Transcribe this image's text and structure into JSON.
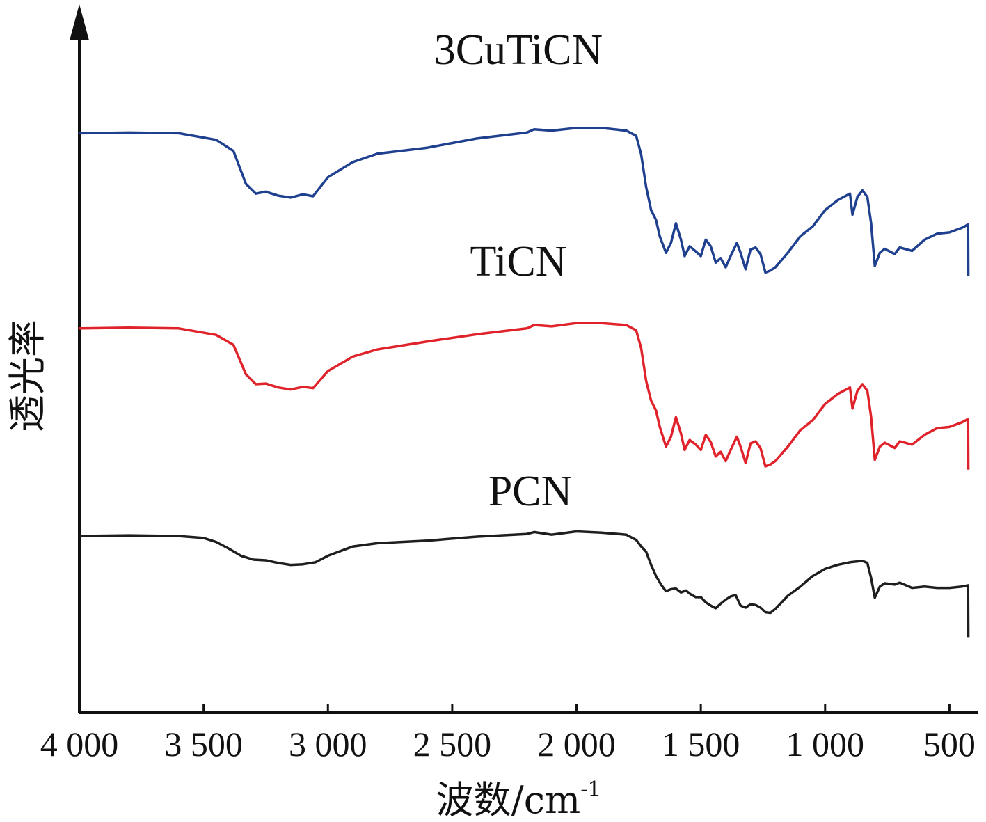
{
  "chart_data": {
    "type": "line",
    "xlabel": "波数/cm",
    "xlabel_superscript": "-1",
    "ylabel": "透光率",
    "xlim": [
      4000,
      420
    ],
    "x_reversed": true,
    "y_range": [
      0,
      100
    ],
    "grid": false,
    "x_ticks": [
      {
        "value": 4000,
        "label": "4 000"
      },
      {
        "value": 3500,
        "label": "3 500"
      },
      {
        "value": 3000,
        "label": "3 000"
      },
      {
        "value": 2500,
        "label": "2 500"
      },
      {
        "value": 2000,
        "label": "2 000"
      },
      {
        "value": 1500,
        "label": "1 500"
      },
      {
        "value": 1000,
        "label": "1 000"
      },
      {
        "value": 500,
        "label": "500"
      }
    ],
    "series": [
      {
        "name": "3CuTiCN",
        "color": "#1f3f8f",
        "points": [
          [
            4000,
            88.2
          ],
          [
            3800,
            88.3
          ],
          [
            3600,
            88.2
          ],
          [
            3450,
            87.2
          ],
          [
            3380,
            85.5
          ],
          [
            3330,
            80.5
          ],
          [
            3290,
            79.0
          ],
          [
            3250,
            79.3
          ],
          [
            3200,
            78.7
          ],
          [
            3150,
            78.4
          ],
          [
            3100,
            78.9
          ],
          [
            3060,
            78.6
          ],
          [
            3000,
            81.5
          ],
          [
            2900,
            83.8
          ],
          [
            2800,
            85.1
          ],
          [
            2600,
            86.0
          ],
          [
            2400,
            87.4
          ],
          [
            2200,
            88.3
          ],
          [
            2170,
            88.8
          ],
          [
            2100,
            88.6
          ],
          [
            2000,
            89.0
          ],
          [
            1900,
            89.0
          ],
          [
            1800,
            88.6
          ],
          [
            1760,
            87.8
          ],
          [
            1740,
            85.0
          ],
          [
            1720,
            80.0
          ],
          [
            1700,
            76.5
          ],
          [
            1680,
            75.0
          ],
          [
            1665,
            72.5
          ],
          [
            1640,
            70.0
          ],
          [
            1620,
            71.5
          ],
          [
            1600,
            74.5
          ],
          [
            1580,
            72.0
          ],
          [
            1565,
            69.5
          ],
          [
            1545,
            71.0
          ],
          [
            1520,
            70.2
          ],
          [
            1500,
            69.5
          ],
          [
            1480,
            72.0
          ],
          [
            1460,
            71.0
          ],
          [
            1440,
            68.5
          ],
          [
            1420,
            69.2
          ],
          [
            1400,
            67.8
          ],
          [
            1380,
            69.5
          ],
          [
            1355,
            71.5
          ],
          [
            1340,
            70.0
          ],
          [
            1320,
            67.5
          ],
          [
            1300,
            70.5
          ],
          [
            1280,
            70.8
          ],
          [
            1260,
            69.8
          ],
          [
            1240,
            67.0
          ],
          [
            1220,
            67.3
          ],
          [
            1200,
            67.8
          ],
          [
            1150,
            70.0
          ],
          [
            1100,
            72.5
          ],
          [
            1050,
            74.0
          ],
          [
            1000,
            76.5
          ],
          [
            950,
            78.0
          ],
          [
            900,
            79.0
          ],
          [
            890,
            75.8
          ],
          [
            870,
            78.5
          ],
          [
            850,
            79.5
          ],
          [
            830,
            78.5
          ],
          [
            815,
            74.5
          ],
          [
            800,
            68.0
          ],
          [
            780,
            70.0
          ],
          [
            760,
            70.6
          ],
          [
            720,
            69.8
          ],
          [
            700,
            70.8
          ],
          [
            650,
            70.3
          ],
          [
            600,
            72.0
          ],
          [
            550,
            72.9
          ],
          [
            500,
            73.1
          ],
          [
            450,
            73.8
          ],
          [
            425,
            74.3
          ],
          [
            424,
            66.5
          ]
        ]
      },
      {
        "name": "TiCN",
        "color": "#e0232b",
        "points": [
          [
            4000,
            58.5
          ],
          [
            3800,
            58.6
          ],
          [
            3600,
            58.5
          ],
          [
            3450,
            57.5
          ],
          [
            3380,
            56.0
          ],
          [
            3330,
            51.5
          ],
          [
            3290,
            50.0
          ],
          [
            3250,
            50.1
          ],
          [
            3200,
            49.5
          ],
          [
            3150,
            49.2
          ],
          [
            3100,
            49.6
          ],
          [
            3060,
            49.4
          ],
          [
            3000,
            52.0
          ],
          [
            2900,
            54.2
          ],
          [
            2800,
            55.3
          ],
          [
            2600,
            56.5
          ],
          [
            2400,
            57.6
          ],
          [
            2200,
            58.5
          ],
          [
            2170,
            59.0
          ],
          [
            2100,
            58.8
          ],
          [
            2000,
            59.3
          ],
          [
            1900,
            59.3
          ],
          [
            1800,
            59.0
          ],
          [
            1760,
            58.2
          ],
          [
            1740,
            55.5
          ],
          [
            1720,
            50.5
          ],
          [
            1700,
            47.5
          ],
          [
            1680,
            46.0
          ],
          [
            1665,
            43.5
          ],
          [
            1640,
            40.5
          ],
          [
            1620,
            42.0
          ],
          [
            1600,
            45.0
          ],
          [
            1580,
            42.5
          ],
          [
            1565,
            40.0
          ],
          [
            1545,
            41.5
          ],
          [
            1520,
            40.8
          ],
          [
            1500,
            40.0
          ],
          [
            1480,
            42.3
          ],
          [
            1460,
            41.2
          ],
          [
            1440,
            39.0
          ],
          [
            1420,
            39.7
          ],
          [
            1400,
            38.3
          ],
          [
            1380,
            40.0
          ],
          [
            1355,
            42.0
          ],
          [
            1340,
            40.5
          ],
          [
            1320,
            38.0
          ],
          [
            1300,
            41.0
          ],
          [
            1280,
            41.3
          ],
          [
            1260,
            40.3
          ],
          [
            1240,
            37.5
          ],
          [
            1220,
            37.8
          ],
          [
            1200,
            38.3
          ],
          [
            1150,
            40.5
          ],
          [
            1100,
            43.0
          ],
          [
            1050,
            44.5
          ],
          [
            1000,
            47.0
          ],
          [
            950,
            48.5
          ],
          [
            900,
            49.5
          ],
          [
            890,
            46.3
          ],
          [
            870,
            49.0
          ],
          [
            850,
            50.0
          ],
          [
            830,
            49.0
          ],
          [
            815,
            45.0
          ],
          [
            800,
            38.5
          ],
          [
            780,
            40.5
          ],
          [
            760,
            41.1
          ],
          [
            720,
            40.3
          ],
          [
            700,
            41.3
          ],
          [
            650,
            40.8
          ],
          [
            600,
            42.3
          ],
          [
            550,
            43.3
          ],
          [
            500,
            43.5
          ],
          [
            450,
            44.2
          ],
          [
            425,
            44.7
          ],
          [
            424,
            37.0
          ]
        ]
      },
      {
        "name": "PCN",
        "color": "#1e1e1e",
        "points": [
          [
            4000,
            26.9
          ],
          [
            3800,
            27.0
          ],
          [
            3600,
            26.9
          ],
          [
            3500,
            26.6
          ],
          [
            3450,
            26.0
          ],
          [
            3400,
            25.0
          ],
          [
            3350,
            23.9
          ],
          [
            3300,
            23.3
          ],
          [
            3250,
            23.2
          ],
          [
            3200,
            22.8
          ],
          [
            3150,
            22.5
          ],
          [
            3100,
            22.6
          ],
          [
            3050,
            22.9
          ],
          [
            3000,
            23.9
          ],
          [
            2900,
            25.3
          ],
          [
            2800,
            25.8
          ],
          [
            2600,
            26.2
          ],
          [
            2400,
            26.8
          ],
          [
            2200,
            27.2
          ],
          [
            2170,
            27.5
          ],
          [
            2100,
            27.1
          ],
          [
            2000,
            27.6
          ],
          [
            1900,
            27.4
          ],
          [
            1800,
            27.1
          ],
          [
            1760,
            26.3
          ],
          [
            1740,
            25.3
          ],
          [
            1720,
            24.5
          ],
          [
            1700,
            22.5
          ],
          [
            1680,
            20.8
          ],
          [
            1660,
            19.5
          ],
          [
            1640,
            18.5
          ],
          [
            1620,
            18.8
          ],
          [
            1600,
            18.9
          ],
          [
            1580,
            18.3
          ],
          [
            1560,
            18.6
          ],
          [
            1540,
            18.0
          ],
          [
            1520,
            17.6
          ],
          [
            1500,
            17.6
          ],
          [
            1480,
            16.8
          ],
          [
            1460,
            16.3
          ],
          [
            1440,
            15.9
          ],
          [
            1420,
            16.6
          ],
          [
            1400,
            17.2
          ],
          [
            1380,
            17.7
          ],
          [
            1360,
            17.9
          ],
          [
            1340,
            16.3
          ],
          [
            1320,
            16.0
          ],
          [
            1300,
            16.5
          ],
          [
            1280,
            16.4
          ],
          [
            1260,
            16.0
          ],
          [
            1240,
            15.3
          ],
          [
            1220,
            15.2
          ],
          [
            1200,
            15.8
          ],
          [
            1150,
            17.8
          ],
          [
            1100,
            19.2
          ],
          [
            1050,
            20.8
          ],
          [
            1000,
            21.9
          ],
          [
            950,
            22.5
          ],
          [
            900,
            22.9
          ],
          [
            850,
            23.1
          ],
          [
            830,
            22.8
          ],
          [
            815,
            20.5
          ],
          [
            800,
            17.5
          ],
          [
            780,
            19.2
          ],
          [
            760,
            19.7
          ],
          [
            720,
            19.5
          ],
          [
            700,
            19.8
          ],
          [
            650,
            19.0
          ],
          [
            600,
            19.2
          ],
          [
            550,
            19.0
          ],
          [
            500,
            19.0
          ],
          [
            450,
            19.2
          ],
          [
            425,
            19.4
          ],
          [
            424,
            11.5
          ]
        ]
      }
    ]
  }
}
